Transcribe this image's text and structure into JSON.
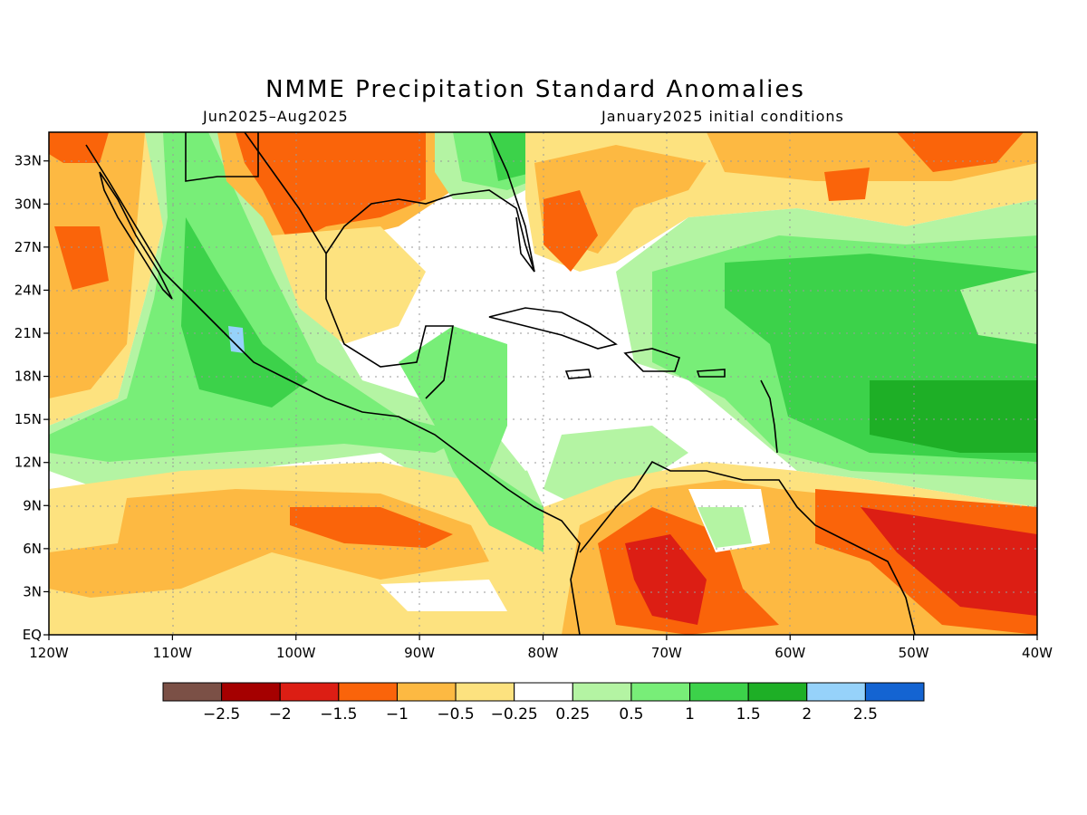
{
  "title": "NMME Precipitation Standard Anomalies",
  "subtitle_left": "Jun2025–Aug2025",
  "subtitle_right": "January2025 initial conditions",
  "map": {
    "lon_labels": [
      "120W",
      "110W",
      "100W",
      "90W",
      "80W",
      "70W",
      "60W",
      "50W",
      "40W"
    ],
    "lat_labels": [
      "EQ",
      "3N",
      "6N",
      "9N",
      "12N",
      "15N",
      "18N",
      "21N",
      "24N",
      "27N",
      "30N",
      "33N"
    ],
    "lon_range": [
      -120,
      -40
    ],
    "lat_range": [
      0,
      35
    ],
    "grid": "dotted"
  },
  "colorbar": {
    "colors": [
      "#7b5046",
      "#a50000",
      "#dc1e14",
      "#fa640a",
      "#fdb942",
      "#fde27f",
      "#ffffff",
      "#b4f4a3",
      "#78ee78",
      "#3cd24a",
      "#1eaf26",
      "#96d2fa",
      "#1464d2"
    ],
    "labels": [
      "−2.5",
      "−2",
      "−1.5",
      "−1",
      "−0.5",
      "−0.25",
      "0.25",
      "0.5",
      "1",
      "1.5",
      "2",
      "2.5"
    ]
  },
  "palette": {
    "dry2": "#dc1e14",
    "dry15": "#fa640a",
    "dry1": "#fdb942",
    "dry05": "#fde27f",
    "neutral": "#ffffff",
    "wet05": "#b4f4a3",
    "wet1": "#78ee78",
    "wet15": "#3cd24a",
    "wet2": "#1eaf26",
    "wet25": "#96d2fa"
  }
}
